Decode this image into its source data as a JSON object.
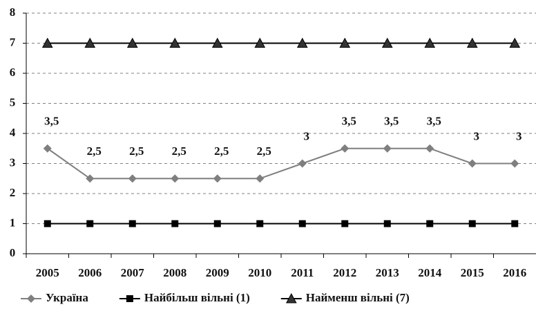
{
  "chart_data": {
    "type": "line",
    "categories": [
      "2005",
      "2006",
      "2007",
      "2008",
      "2009",
      "2010",
      "2011",
      "2012",
      "2013",
      "2014",
      "2015",
      "2016"
    ],
    "series": [
      {
        "name": "Україна",
        "color": "#7f7f7f",
        "marker": "diamond",
        "values": [
          3.5,
          2.5,
          2.5,
          2.5,
          2.5,
          2.5,
          3,
          3.5,
          3.5,
          3.5,
          3,
          3
        ],
        "value_labels": [
          "3,5",
          "2,5",
          "2,5",
          "2,5",
          "2,5",
          "2,5",
          "3",
          "3,5",
          "3,5",
          "3,5",
          "3",
          "3"
        ]
      },
      {
        "name": "Найбільш вільні (1)",
        "color": "#000000",
        "marker": "square",
        "values": [
          1,
          1,
          1,
          1,
          1,
          1,
          1,
          1,
          1,
          1,
          1,
          1
        ]
      },
      {
        "name": "Найменш вільні (7)",
        "color": "#000000",
        "marker": "triangle",
        "values": [
          7,
          7,
          7,
          7,
          7,
          7,
          7,
          7,
          7,
          7,
          7,
          7
        ]
      }
    ],
    "ylim": [
      0,
      8
    ],
    "yticks": [
      0,
      1,
      2,
      3,
      4,
      5,
      6,
      7,
      8
    ],
    "grid": true,
    "legend": "bottom"
  }
}
